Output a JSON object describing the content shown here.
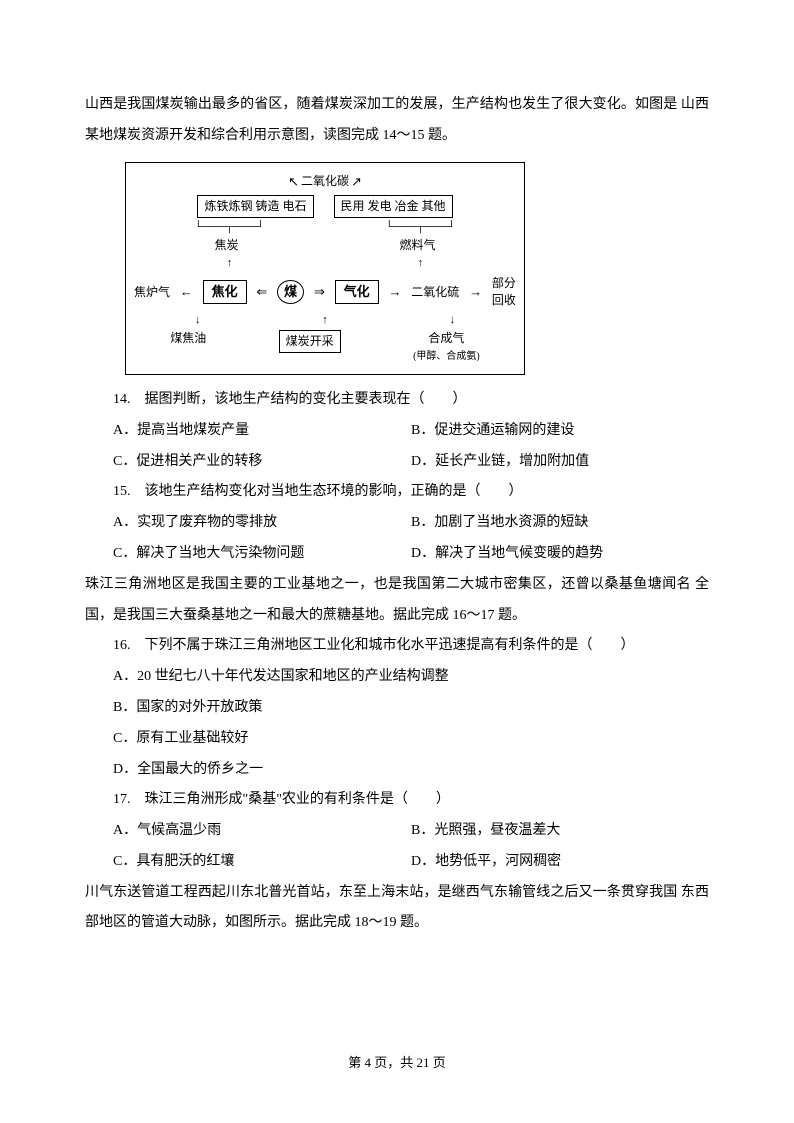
{
  "intro1_line1": "山西是我国煤炭输出最多的省区，随着煤炭深加工的发展，生产结构也发生了很大变化。如图是",
  "intro1_line2": "山西某地煤炭资源开发和综合利用示意图，读图完成 14～15 题。",
  "diagram": {
    "top_arrow_label": "二氧化碳",
    "left_box": "炼铁炼钢 铸造 电石",
    "right_box": "民用 发电 冶金 其他",
    "left_sub": "焦炭",
    "right_sub": "燃料气",
    "left_side": "焦炉气",
    "proc_left": "焦化",
    "center": "煤",
    "proc_right": "气化",
    "right_mid": "二氧化硫",
    "right_side_top": "部分",
    "right_side_bot": "回收",
    "bottom_left": "煤焦油",
    "bottom_center_box": "煤炭开采",
    "bottom_right_top": "合成气",
    "bottom_right_sub": "(甲醇、合成氨)"
  },
  "q14": {
    "text": "14.　据图判断，该地生产结构的变化主要表现在（　　）",
    "optA": "A．提高当地煤炭产量",
    "optB": "B．促进交通运输网的建设",
    "optC": "C．促进相关产业的转移",
    "optD": "D．延长产业链，增加附加值"
  },
  "q15": {
    "text": "15.　该地生产结构变化对当地生态环境的影响，正确的是（　　）",
    "optA": "A．实现了废弃物的零排放",
    "optB": "B．加剧了当地水资源的短缺",
    "optC": "C．解决了当地大气污染物问题",
    "optD": "D．解决了当地气候变暖的趋势"
  },
  "intro2_line1": "珠江三角洲地区是我国主要的工业基地之一，也是我国第二大城市密集区，还曾以桑基鱼塘闻名",
  "intro2_line2": "全国，是我国三大蚕桑基地之一和最大的蔗糖基地。据此完成 16～17 题。",
  "q16": {
    "text": "16.　下列不属于珠江三角洲地区工业化和城市化水平迅速提高有利条件的是（　　）",
    "optA": "A．20 世纪七八十年代发达国家和地区的产业结构调整",
    "optB": "B．国家的对外开放政策",
    "optC": "C．原有工业基础较好",
    "optD": "D．全国最大的侨乡之一"
  },
  "q17": {
    "text": "17.　珠江三角洲形成\"桑基\"农业的有利条件是（　　）",
    "optA": "A．气候高温少雨",
    "optB": "B．光照强，昼夜温差大",
    "optC": "C．具有肥沃的红壤",
    "optD": "D．地势低平，河网稠密"
  },
  "intro3_line1": "川气东送管道工程西起川东北普光首站，东至上海末站，是继西气东输管线之后又一条贯穿我国",
  "intro3_line2": "东西部地区的管道大动脉，如图所示。据此完成 18～19 题。",
  "footer": "第 4 页，共 21 页"
}
